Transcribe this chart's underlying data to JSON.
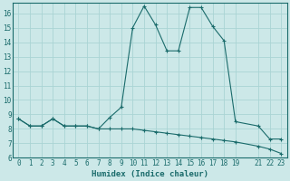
{
  "xlabel": "Humidex (Indice chaleur)",
  "bg_color": "#cce8e8",
  "grid_color": "#aad4d4",
  "line_color": "#1a6b6b",
  "xlim": [
    -0.5,
    23.5
  ],
  "ylim": [
    6,
    16.7
  ],
  "xticks": [
    0,
    1,
    2,
    3,
    4,
    5,
    6,
    7,
    8,
    9,
    10,
    11,
    12,
    13,
    14,
    15,
    16,
    17,
    18,
    19,
    21,
    22,
    23
  ],
  "yticks": [
    6,
    7,
    8,
    9,
    10,
    11,
    12,
    13,
    14,
    15,
    16
  ],
  "curve1_x": [
    0,
    1,
    2,
    3,
    4,
    5,
    6,
    7,
    8,
    9,
    10,
    11,
    12,
    13,
    14,
    15,
    16,
    17,
    18,
    19,
    21,
    22,
    23
  ],
  "curve1_y": [
    8.7,
    8.2,
    8.2,
    8.7,
    8.2,
    8.2,
    8.2,
    8.0,
    8.8,
    9.5,
    15.0,
    16.5,
    15.2,
    13.4,
    13.4,
    16.4,
    16.4,
    15.1,
    14.1,
    8.5,
    8.2,
    7.3,
    7.3
  ],
  "curve2_x": [
    0,
    1,
    2,
    3,
    4,
    5,
    6,
    7,
    8,
    9,
    10,
    11,
    12,
    13,
    14,
    15,
    16,
    17,
    18,
    19,
    21,
    22,
    23
  ],
  "curve2_y": [
    8.7,
    8.2,
    8.2,
    8.7,
    8.2,
    8.2,
    8.2,
    8.0,
    8.0,
    8.0,
    8.0,
    7.9,
    7.8,
    7.7,
    7.6,
    7.5,
    7.4,
    7.3,
    7.2,
    7.1,
    6.8,
    6.6,
    6.3
  ]
}
